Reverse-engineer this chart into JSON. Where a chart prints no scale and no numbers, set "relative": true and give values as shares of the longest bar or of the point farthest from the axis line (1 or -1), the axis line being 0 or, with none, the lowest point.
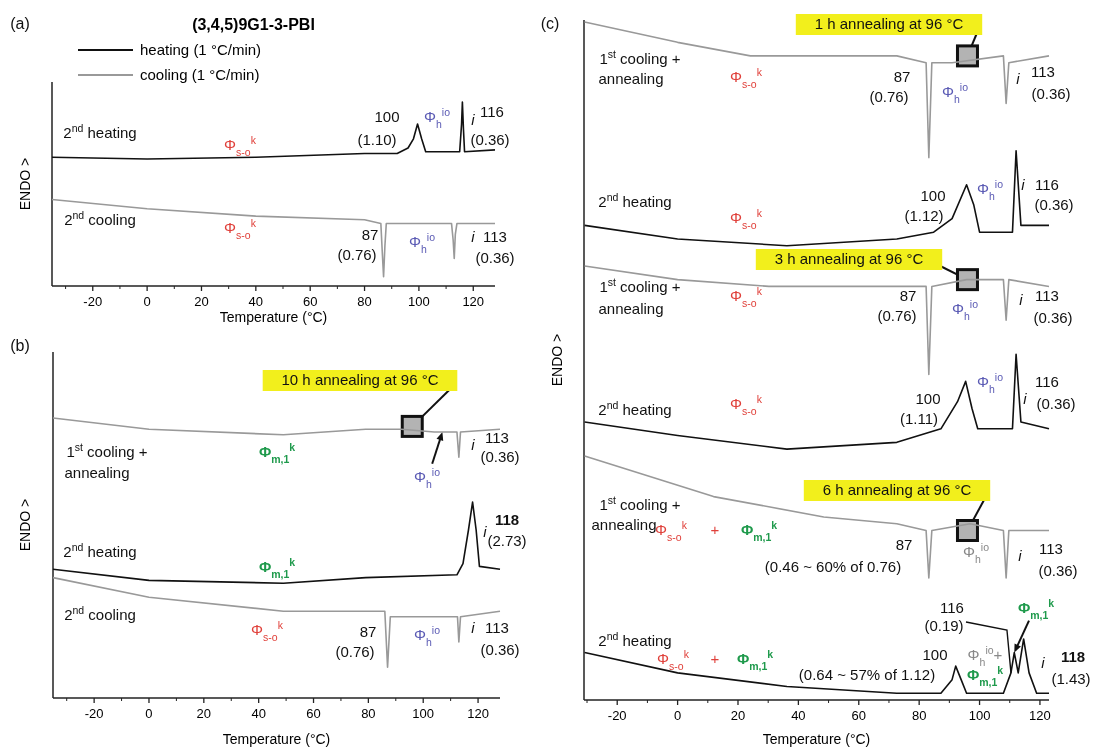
{
  "chart_data": [
    {
      "type": "line",
      "relative": true,
      "title": "(3,4,5)9G1-3-PBI",
      "xlabel": "Temperature (°C)",
      "ylabel": "ENDO >",
      "xlim": [
        -35,
        128
      ],
      "xticks": [
        -20,
        0,
        20,
        40,
        60,
        80,
        100,
        120
      ],
      "legend": "top left",
      "series": [
        {
          "name": "heating (1 °C/min)",
          "color": "#111111",
          "x": [
            -35,
            0,
            40,
            80,
            92,
            96,
            98,
            99.5,
            101,
            102.5,
            115,
            115.7,
            116,
            116.4,
            116.8,
            128
          ],
          "values": [
            0.7,
            0.69,
            0.7,
            0.72,
            0.72,
            0.75,
            0.8,
            0.88,
            0.8,
            0.73,
            0.73,
            0.88,
            1,
            0.85,
            0.73,
            0.74
          ]
        },
        {
          "name": "cooling (1 °C/min)",
          "color": "#999999",
          "x": [
            -35,
            0,
            40,
            80,
            86,
            86.5,
            87,
            87.5,
            88,
            112,
            112.6,
            113,
            113.4,
            114,
            128
          ],
          "values": [
            0.47,
            0.42,
            0.38,
            0.36,
            0.34,
            0.19,
            0.05,
            0.22,
            0.34,
            0.34,
            0.25,
            0.15,
            0.28,
            0.34,
            0.34
          ]
        }
      ],
      "annotations": [
        "(a)",
        "2$^{nd}$ heating",
        "Φ$_{s-o}$$^{k}$",
        "100",
        "(1.10)",
        "Φ$_{h}$$^{io}$",
        "i",
        "116",
        "(0.36)",
        "2$^{nd}$ cooling",
        "Φ$_{s-o}$$^{k}$",
        "87",
        "(0.76)",
        "Φ$_{h}$$^{io}$",
        "i",
        "113",
        "(0.36)"
      ]
    },
    {
      "type": "line",
      "relative": true,
      "xlabel": "Temperature (°C)",
      "ylabel": "ENDO >",
      "xlim": [
        -35,
        128
      ],
      "xticks": [
        -20,
        0,
        20,
        40,
        60,
        80,
        100,
        120
      ],
      "series": [
        {
          "color": "#999999",
          "x": [
            -35,
            0,
            49,
            79,
            92,
            104,
            112.3,
            113,
            113.6,
            128
          ],
          "values": [
            1,
            0.96,
            0.94,
            0.96,
            0.96,
            0.95,
            0.95,
            0.86,
            0.95,
            0.96
          ]
        },
        {
          "color": "#111111",
          "x": [
            -35,
            0,
            49,
            79,
            112.3,
            114.5,
            116.5,
            118,
            119.3,
            120.5,
            128
          ],
          "values": [
            0.46,
            0.42,
            0.41,
            0.43,
            0.44,
            0.48,
            0.6,
            0.7,
            0.6,
            0.47,
            0.46
          ]
        },
        {
          "color": "#999999",
          "x": [
            -35,
            0,
            49,
            86,
            87,
            88,
            112.5,
            113,
            113.6,
            128
          ],
          "values": [
            0.43,
            0.36,
            0.31,
            0.31,
            0.11,
            0.29,
            0.29,
            0.2,
            0.29,
            0.31
          ]
        }
      ],
      "annotations": [
        "(b)",
        {
          "text": "10 h annealing at 96 °C",
          "x": 96,
          "y": 0.97
        },
        "1$^{st}$ cooling +",
        "annealing",
        "Φ$_{m,1}$$^{k}$",
        {
          "text": "Φ$_{h}$$^{io}$",
          "x": 107,
          "y": 0.95
        },
        "i",
        "113",
        "(0.36)",
        "2$^{nd}$ heating",
        "Φ$_{m,1}$$^{k}$",
        "i",
        "118",
        "(2.73)",
        "2$^{nd}$ cooling",
        "Φ$_{s-o}$$^{k}$",
        "87",
        "(0.76)",
        "Φ$_{h}$$^{io}$",
        "i",
        "113",
        "(0.36)"
      ]
    },
    {
      "type": "line",
      "relative": true,
      "xlabel": "Temperature (°C)",
      "ylabel": "ENDO >",
      "xlim": [
        -31,
        123
      ],
      "xticks": [
        -20,
        0,
        20,
        40,
        60,
        80,
        100,
        120
      ],
      "series": [
        {
          "color": "#999999",
          "x": [
            -30.8,
            0,
            24.1,
            72.6,
            82.3,
            83.2,
            84.2,
            90.9,
            107.9,
            108.8,
            109.7,
            123
          ],
          "values": [
            1,
            0.97,
            0.95,
            0.95,
            0.94,
            0.8,
            0.94,
            0.94,
            0.95,
            0.88,
            0.94,
            0.95
          ]
        },
        {
          "color": "#111111",
          "x": [
            -30.8,
            0,
            36.2,
            72.6,
            84.8,
            90.9,
            95.7,
            98.1,
            100,
            110.9,
            112.1,
            113.7,
            123
          ],
          "values": [
            0.7,
            0.68,
            0.67,
            0.68,
            0.69,
            0.71,
            0.76,
            0.73,
            0.69,
            0.69,
            0.81,
            0.7,
            0.7
          ]
        },
        {
          "color": "#999999",
          "x": [
            -30.8,
            0,
            30.2,
            72.6,
            82.3,
            83.2,
            84.2,
            95.7,
            107.9,
            108.8,
            109.7,
            123
          ],
          "values": [
            0.64,
            0.62,
            0.61,
            0.61,
            0.61,
            0.48,
            0.61,
            0.62,
            0.62,
            0.56,
            0.62,
            0.61
          ]
        },
        {
          "color": "#111111",
          "x": [
            -30.8,
            0,
            36.2,
            72.6,
            87.2,
            92.7,
            95.4,
            97.5,
            99.4,
            110.9,
            112.1,
            113.7,
            123
          ],
          "values": [
            0.41,
            0.39,
            0.37,
            0.38,
            0.4,
            0.44,
            0.47,
            0.43,
            0.4,
            0.4,
            0.51,
            0.41,
            0.4
          ]
        },
        {
          "color": "#999999",
          "x": [
            -30.8,
            11.9,
            48.4,
            72.6,
            82.3,
            83.2,
            84.2,
            96.9,
            107.9,
            108.8,
            109.7,
            123
          ],
          "values": [
            0.36,
            0.3,
            0.27,
            0.26,
            0.25,
            0.18,
            0.25,
            0.26,
            0.25,
            0.18,
            0.25,
            0.25
          ]
        },
        {
          "color": "#111111",
          "x": [
            -30.8,
            0,
            36.2,
            72.6,
            87.2,
            90.9,
            92.1,
            93.9,
            95.7,
            107.9,
            110.4,
            111.5,
            112.8,
            114.6,
            116.4,
            118.9,
            123
          ],
          "values": [
            0.07,
            0.04,
            0.02,
            0.01,
            0.01,
            0.03,
            0.05,
            0.03,
            0.01,
            0.01,
            0.04,
            0.07,
            0.04,
            0.09,
            0.04,
            0.01,
            0.01
          ]
        }
      ],
      "annotations": [
        "(c)",
        {
          "text": "1 h annealing at 96 °C",
          "x": 96,
          "y": 0.95
        },
        "1$^{st}$ cooling +",
        "annealing",
        "Φ$_{s-o}$$^{k}$",
        "87",
        "(0.76)",
        "Φ$_{h}$$^{io}$",
        "i",
        "113",
        "(0.36)",
        "2$^{nd}$ heating",
        "Φ$_{s-o}$$^{k}$",
        "100",
        "(1.12)",
        "Φ$_{h}$$^{io}$",
        "i",
        "116",
        "(0.36)",
        {
          "text": "3 h annealing at 96 °C",
          "x": 96,
          "y": 0.62
        },
        "1$^{st}$ cooling +",
        "annealing",
        "Φ$_{s-o}$$^{k}$",
        "87",
        "(0.76)",
        "Φ$_{h}$$^{io}$",
        "i",
        "113",
        "(0.36)",
        "2$^{nd}$ heating",
        "Φ$_{s-o}$$^{k}$",
        "100",
        "(1.11)",
        "Φ$_{h}$$^{io}$",
        "i",
        "116",
        "(0.36)",
        {
          "text": "6 h annealing at 96 °C",
          "x": 96,
          "y": 0.25
        },
        "1$^{st}$ cooling +",
        "annealing",
        "Φ$_{s-o}$$^{k}$",
        "+",
        "Φ$_{m,1}$$^{k}$",
        "87",
        "(0.46 ~ 60% of 0.76)",
        "Φ$_{h}$$^{io}$",
        "i",
        "113",
        "(0.36)",
        "2$^{nd}$ heating",
        "Φ$_{s-o}$$^{k}$",
        "+",
        "Φ$_{m,1}$$^{k}$",
        "100",
        "(0.64 ~ 57% of 1.12)",
        "Φ$_{h}$$^{io}$+",
        "Φ$_{m,1}$$^{k}$",
        "116",
        {
          "text": "(0.19)",
          "x": 110.4,
          "y": 0.04
        },
        {
          "text": "Φ$_{m,1}$$^{k}$",
          "x": 111.5,
          "y": 0.07
        },
        "i",
        "118",
        "(1.43)"
      ]
    }
  ]
}
